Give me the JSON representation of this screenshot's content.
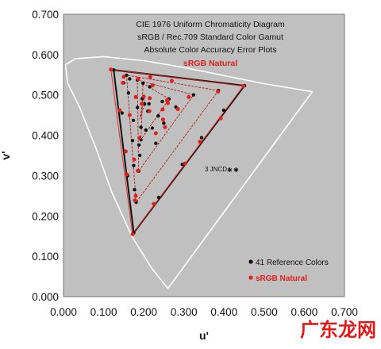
{
  "chart_data": {
    "type": "scatter",
    "title_lines": [
      "CIE 1976 Uniform Chromaticity Diagram",
      "sRGB / Rec.709 Standard Color Gamut",
      "Absolute Color Accuracy Error Plots"
    ],
    "title_highlight": "sRGB Natural",
    "xlabel": "u'",
    "ylabel": "v'",
    "xlim": [
      0,
      0.7
    ],
    "ylim": [
      0,
      0.7
    ],
    "x_ticks": [
      "0.000",
      "0.100",
      "0.200",
      "0.300",
      "0.400",
      "0.500",
      "0.600",
      "0.700"
    ],
    "y_ticks": [
      "0.000",
      "0.100",
      "0.200",
      "0.300",
      "0.400",
      "0.500",
      "0.600",
      "0.700"
    ],
    "background_color": "#c0c0c0",
    "annotation": "3 JNCD",
    "series": [
      {
        "name": "41 Reference Colors",
        "color": "#111111",
        "points": [
          [
            0.451,
            0.523
          ],
          [
            0.386,
            0.511
          ],
          [
            0.324,
            0.5
          ],
          [
            0.263,
            0.49
          ],
          [
            0.202,
            0.478
          ],
          [
            0.125,
            0.562
          ],
          [
            0.157,
            0.549
          ],
          [
            0.184,
            0.537
          ],
          [
            0.198,
            0.529
          ],
          [
            0.175,
            0.158
          ],
          [
            0.181,
            0.234
          ],
          [
            0.187,
            0.311
          ],
          [
            0.193,
            0.389
          ],
          [
            0.237,
            0.246
          ],
          [
            0.296,
            0.328
          ],
          [
            0.344,
            0.394
          ],
          [
            0.399,
            0.462
          ],
          [
            0.184,
            0.469
          ],
          [
            0.162,
            0.505
          ],
          [
            0.174,
            0.437
          ],
          [
            0.172,
            0.387
          ],
          [
            0.175,
            0.325
          ],
          [
            0.177,
            0.265
          ],
          [
            0.188,
            0.376
          ],
          [
            0.193,
            0.42
          ],
          [
            0.221,
            0.418
          ],
          [
            0.236,
            0.448
          ],
          [
            0.246,
            0.484
          ],
          [
            0.213,
            0.478
          ],
          [
            0.196,
            0.491
          ],
          [
            0.205,
            0.413
          ],
          [
            0.21,
            0.46
          ],
          [
            0.165,
            0.54
          ],
          [
            0.146,
            0.455
          ],
          [
            0.16,
            0.3
          ],
          [
            0.215,
            0.52
          ],
          [
            0.15,
            0.53
          ],
          [
            0.25,
            0.43
          ],
          [
            0.28,
            0.47
          ],
          [
            0.19,
            0.35
          ],
          [
            0.23,
            0.38
          ]
        ]
      },
      {
        "name": "sRGB Natural",
        "color": "#e0201c",
        "points": [
          [
            0.448,
            0.522
          ],
          [
            0.385,
            0.508
          ],
          [
            0.312,
            0.495
          ],
          [
            0.258,
            0.487
          ],
          [
            0.118,
            0.563
          ],
          [
            0.15,
            0.545
          ],
          [
            0.216,
            0.544
          ],
          [
            0.27,
            0.535
          ],
          [
            0.172,
            0.155
          ],
          [
            0.178,
            0.239
          ],
          [
            0.185,
            0.312
          ],
          [
            0.189,
            0.394
          ],
          [
            0.225,
            0.23
          ],
          [
            0.303,
            0.33
          ],
          [
            0.34,
            0.384
          ],
          [
            0.392,
            0.442
          ],
          [
            0.18,
            0.495
          ],
          [
            0.165,
            0.45
          ],
          [
            0.155,
            0.36
          ],
          [
            0.176,
            0.34
          ],
          [
            0.18,
            0.25
          ],
          [
            0.23,
            0.405
          ],
          [
            0.248,
            0.439
          ],
          [
            0.26,
            0.48
          ],
          [
            0.2,
            0.496
          ],
          [
            0.195,
            0.478
          ],
          [
            0.214,
            0.46
          ],
          [
            0.247,
            0.464
          ],
          [
            0.148,
            0.53
          ],
          [
            0.14,
            0.462
          ],
          [
            0.158,
            0.303
          ],
          [
            0.222,
            0.524
          ],
          [
            0.186,
            0.54
          ],
          [
            0.215,
            0.492
          ],
          [
            0.253,
            0.42
          ],
          [
            0.285,
            0.465
          ]
        ]
      }
    ],
    "gamut_triangles": [
      [
        [
          0.451,
          0.523
        ],
        [
          0.125,
          0.562
        ],
        [
          0.175,
          0.158
        ]
      ],
      [
        [
          0.448,
          0.522
        ],
        [
          0.118,
          0.563
        ],
        [
          0.172,
          0.155
        ]
      ],
      [
        [
          0.386,
          0.511
        ],
        [
          0.157,
          0.549
        ],
        [
          0.181,
          0.234
        ]
      ],
      [
        [
          0.324,
          0.5
        ],
        [
          0.184,
          0.537
        ],
        [
          0.187,
          0.311
        ]
      ],
      [
        [
          0.263,
          0.49
        ],
        [
          0.198,
          0.529
        ],
        [
          0.193,
          0.389
        ]
      ],
      [
        [
          0.202,
          0.478
        ],
        [
          0.2,
          0.5
        ],
        [
          0.19,
          0.44
        ]
      ]
    ],
    "locus": [
      [
        0.26,
        0.02
      ],
      [
        0.22,
        0.07
      ],
      [
        0.17,
        0.15
      ],
      [
        0.12,
        0.26
      ],
      [
        0.08,
        0.37
      ],
      [
        0.04,
        0.47
      ],
      [
        0.01,
        0.53
      ],
      [
        0.005,
        0.575
      ],
      [
        0.03,
        0.59
      ],
      [
        0.1,
        0.595
      ],
      [
        0.2,
        0.585
      ],
      [
        0.3,
        0.568
      ],
      [
        0.4,
        0.548
      ],
      [
        0.5,
        0.528
      ],
      [
        0.62,
        0.508
      ],
      [
        0.62,
        0.508
      ],
      [
        0.26,
        0.02
      ]
    ]
  },
  "legend": {
    "items": [
      {
        "label": "41 Reference Colors",
        "color": "#111111"
      },
      {
        "label": "sRGB Natural",
        "color": "#e0201c"
      }
    ]
  },
  "watermark": "广东龙网"
}
